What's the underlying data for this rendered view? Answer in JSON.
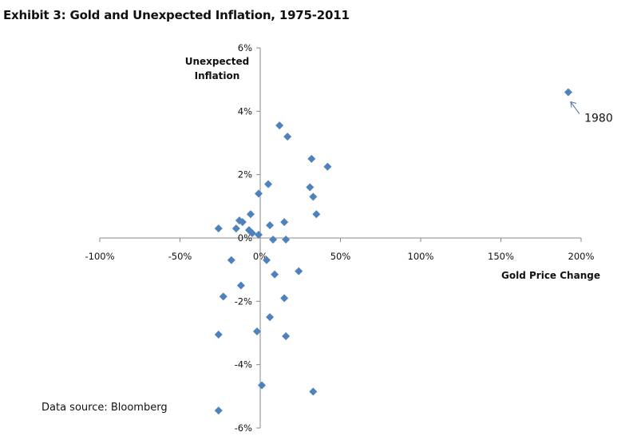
{
  "chart_data": {
    "type": "scatter",
    "title": "Exhibit 3: Gold and Unexpected Inflation, 1975-2011",
    "xlabel": "Gold Price Change",
    "ylabel_lines": [
      "Unexpected",
      "Inflation"
    ],
    "xlim": [
      -100,
      200
    ],
    "ylim": [
      -6,
      6
    ],
    "x_ticks": [
      -100,
      -50,
      0,
      50,
      100,
      150,
      200
    ],
    "x_tick_labels": [
      "-100%",
      "-50%",
      "0%",
      "50%",
      "100%",
      "150%",
      "200%"
    ],
    "y_ticks": [
      6,
      4,
      2,
      0,
      -2,
      -4,
      -6
    ],
    "y_tick_labels": [
      "6%",
      "4%",
      "2%",
      "0%",
      "-2%",
      "-4%",
      "-6%"
    ],
    "grid": false,
    "marker_color": "#4f81bd",
    "marker_shape": "diamond",
    "points": [
      {
        "x": 192,
        "y": 4.6
      },
      {
        "x": 12,
        "y": 3.55
      },
      {
        "x": 17,
        "y": 3.2
      },
      {
        "x": 32,
        "y": 2.5
      },
      {
        "x": 42,
        "y": 2.25
      },
      {
        "x": 5,
        "y": 1.7
      },
      {
        "x": 31,
        "y": 1.6
      },
      {
        "x": -1,
        "y": 1.4
      },
      {
        "x": 33,
        "y": 1.3
      },
      {
        "x": -6,
        "y": 0.75
      },
      {
        "x": 35,
        "y": 0.75
      },
      {
        "x": -13,
        "y": 0.55
      },
      {
        "x": -11,
        "y": 0.5
      },
      {
        "x": 15,
        "y": 0.5
      },
      {
        "x": -26,
        "y": 0.3
      },
      {
        "x": -15,
        "y": 0.3
      },
      {
        "x": 6,
        "y": 0.4
      },
      {
        "x": -7,
        "y": 0.25
      },
      {
        "x": -5,
        "y": 0.15
      },
      {
        "x": -1,
        "y": 0.1
      },
      {
        "x": 8,
        "y": -0.05
      },
      {
        "x": 16,
        "y": -0.05
      },
      {
        "x": -18,
        "y": -0.7
      },
      {
        "x": 4,
        "y": -0.7
      },
      {
        "x": 24,
        "y": -1.05
      },
      {
        "x": 9,
        "y": -1.15
      },
      {
        "x": -12,
        "y": -1.5
      },
      {
        "x": -23,
        "y": -1.85
      },
      {
        "x": 15,
        "y": -1.9
      },
      {
        "x": 6,
        "y": -2.5
      },
      {
        "x": -2,
        "y": -2.95
      },
      {
        "x": -26,
        "y": -3.05
      },
      {
        "x": 16,
        "y": -3.1
      },
      {
        "x": 1,
        "y": -4.65
      },
      {
        "x": 33,
        "y": -4.85
      },
      {
        "x": -26,
        "y": -5.45
      }
    ],
    "annotations": [
      {
        "text": "1980",
        "x": 192,
        "y": 4.6
      }
    ]
  },
  "footer": {
    "source": "Data source: Bloomberg"
  }
}
